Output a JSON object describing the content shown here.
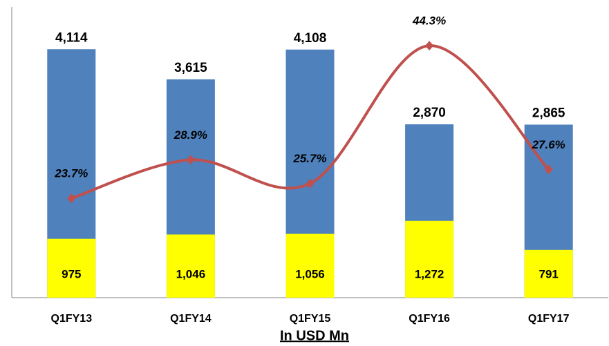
{
  "chart_data": {
    "type": "bar",
    "title": "In USD Mn",
    "categories": [
      "Q1FY13",
      "Q1FY14",
      "Q1FY15",
      "Q1FY16",
      "Q1FY17"
    ],
    "ylim": [
      0,
      4700
    ],
    "y2lim": [
      10.3,
      48.6
    ],
    "series": [
      {
        "color": "#4f81bd",
        "values": [
          4114,
          3615,
          4108,
          2870,
          2865
        ],
        "value_labels": [
          "4,114",
          "3,615",
          "4,108",
          "2,870",
          "2,865"
        ]
      },
      {
        "color": "#ffff00",
        "values": [
          975,
          1046,
          1056,
          1272,
          791
        ],
        "value_labels": [
          "975",
          "1,046",
          "1,056",
          "1,272",
          "791"
        ]
      },
      {
        "type": "line",
        "axis": "y2",
        "color": "#c0504d",
        "values": [
          23.7,
          28.9,
          25.7,
          44.3,
          27.6
        ],
        "value_labels": [
          "23.7%",
          "28.9%",
          "25.7%",
          "44.3%",
          "27.6%"
        ]
      }
    ]
  }
}
